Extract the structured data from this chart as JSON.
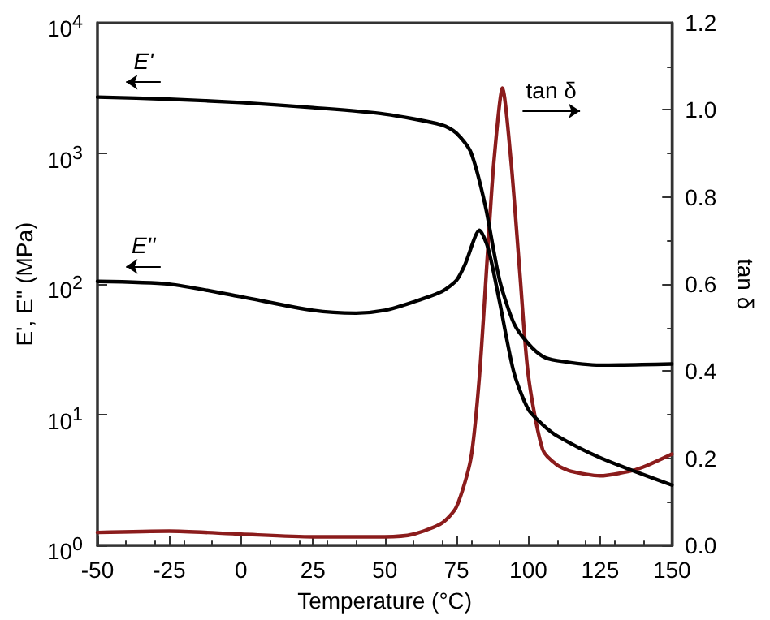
{
  "chart_data": {
    "type": "line",
    "xlabel": "Temperature (°C)",
    "ylabel": "E', E'' (MPa)",
    "y2label": "tan δ",
    "log": "y",
    "xlim": [
      -50,
      150
    ],
    "xticks": [
      -50,
      -25,
      0,
      25,
      50,
      75,
      100,
      125,
      150
    ],
    "ylim": [
      1,
      10000
    ],
    "yticks": [
      {
        "value": 1,
        "label": "10$^{0}$"
      },
      {
        "value": 10,
        "label": "10$^{1}$"
      },
      {
        "value": 100,
        "label": "10$^{2}$"
      },
      {
        "value": 1000,
        "label": "10$^{3}$"
      },
      {
        "value": 10000,
        "label": "10$^{4}$"
      }
    ],
    "y2lim": [
      0,
      1.2
    ],
    "y2ticks": [
      {
        "value": 0,
        "label": "0.0"
      },
      0.2,
      0.4,
      0.6,
      0.8,
      {
        "value": 1,
        "label": "1.0"
      },
      1.2
    ],
    "grid": false,
    "marker": "none",
    "line_style": "solid",
    "series": [
      {
        "name": "E'",
        "color": "#000000",
        "x": [
          -50,
          -25,
          0,
          25,
          50,
          70,
          75,
          80,
          85,
          90,
          95,
          100,
          105,
          110,
          125,
          150
        ],
        "values": [
          2700,
          2600,
          2450,
          2240,
          2000,
          1650,
          1430,
          1020,
          400,
          107,
          50,
          35,
          28,
          26,
          24,
          24.5
        ]
      },
      {
        "name": "E''",
        "color": "#000000",
        "x": [
          -50,
          -25,
          0,
          25,
          40,
          50,
          60,
          70,
          75,
          78,
          83,
          86,
          90,
          95,
          100,
          105,
          110,
          125,
          150
        ],
        "values": [
          105,
          100,
          80,
          63,
          60,
          63,
          73,
          88,
          107,
          142,
          258,
          188,
          73,
          21,
          11,
          8.4,
          6.9,
          4.7,
          2.9
        ]
      },
      {
        "name": "tan δ",
        "color": "#8b1c1c",
        "axis": "y2",
        "x": [
          -50,
          -25,
          0,
          25,
          50,
          60,
          70,
          75,
          80,
          83,
          86,
          88,
          91,
          94,
          97,
          100,
          105,
          110,
          115,
          125,
          135,
          140,
          150
        ],
        "values": [
          0.03,
          0.033,
          0.026,
          0.02,
          0.02,
          0.026,
          0.052,
          0.089,
          0.2,
          0.39,
          0.69,
          0.88,
          1.05,
          0.88,
          0.63,
          0.39,
          0.22,
          0.185,
          0.17,
          0.16,
          0.17,
          0.18,
          0.21
        ]
      }
    ]
  }
}
